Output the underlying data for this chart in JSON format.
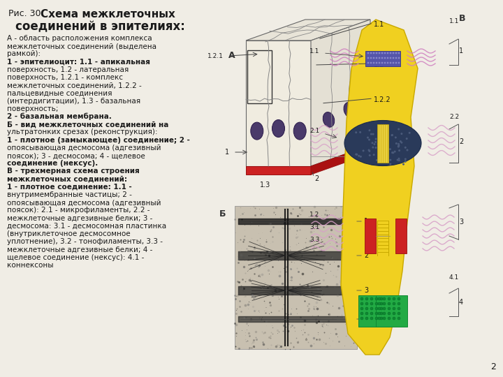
{
  "bg_color": "#f0ede5",
  "title_small": "Рис. 30.",
  "title_big": "Схема межклеточных",
  "title_line2": "соединений в эпителиях:",
  "body_lines": [
    [
      "normal",
      "А - область расположения комплекса"
    ],
    [
      "normal",
      "межклеточных соединений (выделена"
    ],
    [
      "normal",
      "рамкой):"
    ],
    [
      "bold",
      "1 - эпителиоцит: 1.1 - апикальная"
    ],
    [
      "normal",
      "поверхность, 1.2 - латеральная"
    ],
    [
      "normal",
      "поверхность, 1.2.1 - комплекс"
    ],
    [
      "normal",
      "межклеточных соединений, 1.2.2 -"
    ],
    [
      "normal",
      "пальцевидные соединения"
    ],
    [
      "normal",
      "(интердигитации), 1.3 - базальная"
    ],
    [
      "normal",
      "поверхность;"
    ],
    [
      "bold",
      "2 - базальная мембрана."
    ],
    [
      "bold",
      "Б - вид межклеточных соединений на"
    ],
    [
      "normal",
      "ультратонких срезах (реконструкция):"
    ],
    [
      "bold",
      "1 - плотное (замыкающее) соединение; 2 -"
    ],
    [
      "normal",
      "опоясывающая десмосома (адгезивный"
    ],
    [
      "normal",
      "поясок); 3 - десмосома; 4 - щелевое"
    ],
    [
      "bold",
      "соединение (нексус)."
    ],
    [
      "bold",
      "В - трехмерная схема строения"
    ],
    [
      "bold",
      "межклеточных соединений:"
    ],
    [
      "bold",
      "1 - плотное соединение: 1.1 -"
    ],
    [
      "normal",
      "внутримембранные частицы; 2 -"
    ],
    [
      "normal",
      "опоясывающая десмосома (адгезивный"
    ],
    [
      "normal",
      "поясок): 2.1 - микрофиламенты, 2.2 -"
    ],
    [
      "normal",
      "межклеточные адгезивные белки; 3 -"
    ],
    [
      "normal",
      "десмосома: 3.1 - десмосомная пластинка"
    ],
    [
      "normal",
      "(внутриклеточное десмосомное"
    ],
    [
      "normal",
      "уплотнение), 3.2 - тонофиламенты, 3.3 -"
    ],
    [
      "normal",
      "межклеточные адгезивные белки; 4 -"
    ],
    [
      "normal",
      "щелевое соединение (нексус): 4.1 -"
    ],
    [
      "normal",
      "коннексоны"
    ]
  ],
  "body_fontsize": 7.5,
  "page_number": "2",
  "text_color": "#1a1a1a"
}
